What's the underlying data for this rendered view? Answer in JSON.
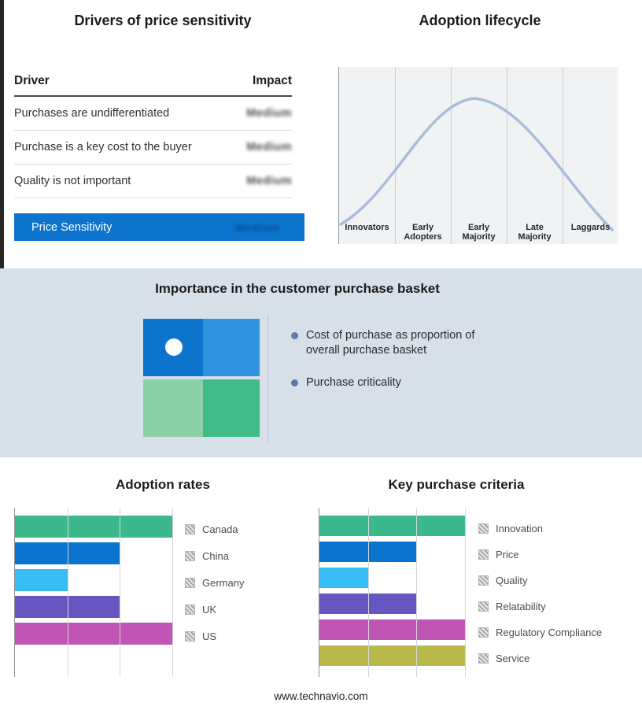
{
  "page": {
    "footer": "www.technavio.com"
  },
  "drivers": {
    "title": "Drivers of price sensitivity",
    "col_driver": "Driver",
    "col_impact": "Impact",
    "rows": [
      {
        "driver": "Purchases are undifferentiated",
        "impact": "Medium"
      },
      {
        "driver": "Purchase is a key cost to the buyer",
        "impact": "Medium"
      },
      {
        "driver": "Quality is not important",
        "impact": "Medium"
      }
    ],
    "summary_label": "Price Sensitivity",
    "summary_value": "Medium",
    "summary_color": "#0d74ce"
  },
  "lifecycle": {
    "title": "Adoption lifecycle",
    "stages": [
      "Innovators",
      "Early Adopters",
      "Early Majority",
      "Late Majority",
      "Laggards"
    ],
    "curve_color": "#a9bdd8"
  },
  "basket": {
    "title": "Importance in the customer purchase basket",
    "bullets": [
      "Cost of purchase as proportion of overall purchase basket",
      "Purchase criticality"
    ],
    "matrix_colors": [
      "#0d74ce",
      "#2f93df",
      "#8bd0a6",
      "#3fbc8a"
    ]
  },
  "chart_data": [
    {
      "type": "bar",
      "orientation": "horizontal",
      "title": "Adoption rates",
      "categories": [
        "Canada",
        "China",
        "Germany",
        "UK",
        "US"
      ],
      "values": [
        3,
        2,
        1,
        2,
        3
      ],
      "colors": [
        "#3cb98c",
        "#0b74cf",
        "#38bdf5",
        "#6657c0",
        "#c155b5"
      ],
      "xlim": [
        0,
        3
      ],
      "grid": true,
      "legend_position": "right"
    },
    {
      "type": "bar",
      "orientation": "horizontal",
      "title": "Key purchase criteria",
      "categories": [
        "Innovation",
        "Price",
        "Quality",
        "Relatability",
        "Regulatory Compliance",
        "Service"
      ],
      "values": [
        3,
        2,
        1,
        2,
        3,
        3
      ],
      "colors": [
        "#3cb98c",
        "#0b74cf",
        "#38bdf5",
        "#6657c0",
        "#c155b5",
        "#b9b94b"
      ],
      "xlim": [
        0,
        3
      ],
      "grid": true,
      "legend_position": "right"
    }
  ]
}
